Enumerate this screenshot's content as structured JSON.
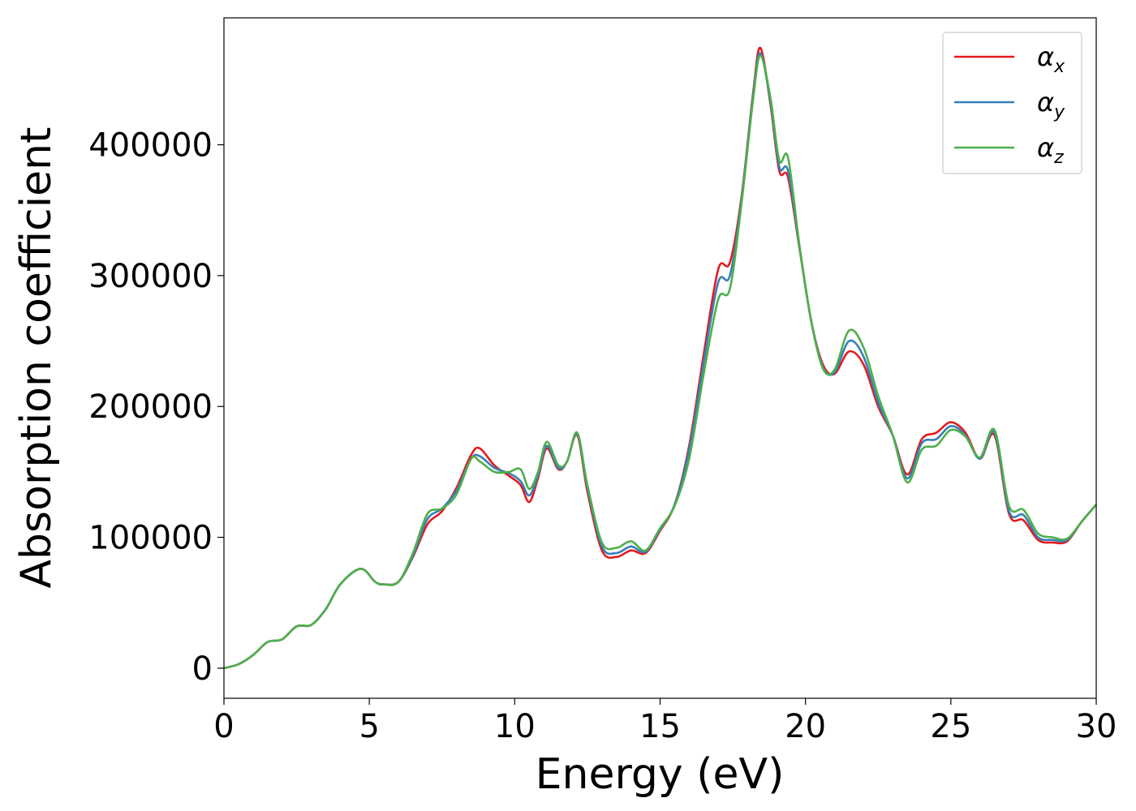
{
  "chart_data": {
    "type": "line",
    "title": "",
    "xlabel": "Energy (eV)",
    "ylabel": "Absorption coefficient",
    "xlim": [
      0,
      30
    ],
    "ylim": [
      -23000,
      497000
    ],
    "xticks": [
      0,
      5,
      10,
      15,
      20,
      25,
      30
    ],
    "yticks": [
      0,
      100000,
      200000,
      300000,
      400000
    ],
    "grid": false,
    "legend_position": "top-right",
    "series": [
      {
        "name": "α_x",
        "symbol": "α",
        "subscript": "x",
        "color": "#e41a1c",
        "x": [
          0,
          0.5,
          1.0,
          1.5,
          2.0,
          2.5,
          3.0,
          3.5,
          4.0,
          4.7,
          5.2,
          5.5,
          6.0,
          6.5,
          7.0,
          7.5,
          8.0,
          8.5,
          8.8,
          9.3,
          9.8,
          10.2,
          10.5,
          10.8,
          11.1,
          11.5,
          11.8,
          12.15,
          12.5,
          13.0,
          13.5,
          14.0,
          14.5,
          15.0,
          15.5,
          16.0,
          16.5,
          17.0,
          17.4,
          17.8,
          18.2,
          18.45,
          18.8,
          19.1,
          19.4,
          19.8,
          20.2,
          20.6,
          21.0,
          21.5,
          22.0,
          22.5,
          23.0,
          23.5,
          24.0,
          24.5,
          25.0,
          25.5,
          26.0,
          26.5,
          27.0,
          27.5,
          28.0,
          28.5,
          29.0,
          29.5,
          30.0
        ],
        "y": [
          0,
          3000,
          10000,
          20000,
          22000,
          32000,
          33000,
          45000,
          64000,
          76000,
          66000,
          64000,
          66000,
          85000,
          110000,
          120000,
          138000,
          163000,
          168000,
          155000,
          147000,
          140000,
          127000,
          145000,
          168000,
          152000,
          158000,
          178000,
          135000,
          90000,
          85000,
          90000,
          88000,
          105000,
          125000,
          170000,
          240000,
          305000,
          310000,
          360000,
          440000,
          474000,
          430000,
          380000,
          375000,
          320000,
          265000,
          232000,
          225000,
          242000,
          232000,
          200000,
          178000,
          148000,
          175000,
          180000,
          188000,
          180000,
          160000,
          178000,
          118000,
          113000,
          98000,
          96000,
          97000,
          112000,
          125000
        ]
      },
      {
        "name": "α_y",
        "symbol": "α",
        "subscript": "y",
        "color": "#377eb8",
        "x": [
          0,
          0.5,
          1.0,
          1.5,
          2.0,
          2.5,
          3.0,
          3.5,
          4.0,
          4.7,
          5.2,
          5.5,
          6.0,
          6.5,
          7.0,
          7.5,
          8.0,
          8.5,
          8.8,
          9.3,
          9.8,
          10.2,
          10.5,
          10.8,
          11.1,
          11.5,
          11.8,
          12.15,
          12.5,
          13.0,
          13.5,
          14.0,
          14.5,
          15.0,
          15.5,
          16.0,
          16.5,
          17.0,
          17.4,
          17.8,
          18.2,
          18.45,
          18.8,
          19.1,
          19.4,
          19.8,
          20.2,
          20.6,
          21.0,
          21.5,
          22.0,
          22.5,
          23.0,
          23.5,
          24.0,
          24.5,
          25.0,
          25.5,
          26.0,
          26.5,
          27.0,
          27.5,
          28.0,
          28.5,
          29.0,
          29.5,
          30.0
        ],
        "y": [
          0,
          3000,
          10000,
          20000,
          22000,
          32000,
          33000,
          45000,
          64000,
          76000,
          66000,
          64000,
          66000,
          86000,
          114000,
          122000,
          136000,
          160000,
          162000,
          153000,
          149000,
          143000,
          132000,
          147000,
          170000,
          153000,
          158000,
          179000,
          138000,
          93000,
          88000,
          93000,
          89000,
          106000,
          125000,
          167000,
          234000,
          295000,
          300000,
          358000,
          438000,
          470000,
          432000,
          383000,
          380000,
          321000,
          265000,
          230000,
          226000,
          250000,
          238000,
          203000,
          178000,
          145000,
          172000,
          175000,
          185000,
          178000,
          160000,
          180000,
          120000,
          117000,
          100000,
          98000,
          98000,
          112000,
          125000
        ]
      },
      {
        "name": "α_z",
        "symbol": "α",
        "subscript": "z",
        "color": "#4daf4a",
        "x": [
          0,
          0.5,
          1.0,
          1.5,
          2.0,
          2.5,
          3.0,
          3.5,
          4.0,
          4.7,
          5.2,
          5.5,
          6.0,
          6.5,
          7.0,
          7.5,
          8.0,
          8.5,
          8.8,
          9.3,
          9.8,
          10.2,
          10.5,
          10.8,
          11.1,
          11.5,
          11.8,
          12.15,
          12.5,
          13.0,
          13.5,
          14.0,
          14.5,
          15.0,
          15.5,
          16.0,
          16.5,
          17.0,
          17.4,
          17.8,
          18.2,
          18.45,
          18.8,
          19.1,
          19.4,
          19.8,
          20.2,
          20.6,
          21.0,
          21.5,
          22.0,
          22.5,
          23.0,
          23.5,
          24.0,
          24.5,
          25.0,
          25.5,
          26.0,
          26.5,
          27.0,
          27.5,
          28.0,
          28.5,
          29.0,
          29.5,
          30.0
        ],
        "y": [
          0,
          3000,
          10000,
          20000,
          22000,
          32000,
          33000,
          45000,
          64000,
          76000,
          66000,
          64000,
          66000,
          88000,
          118000,
          122000,
          133000,
          160000,
          158000,
          150000,
          150000,
          152000,
          137000,
          150000,
          173000,
          155000,
          158000,
          180000,
          140000,
          96000,
          92000,
          97000,
          90000,
          107000,
          124000,
          160000,
          225000,
          282000,
          290000,
          355000,
          435000,
          468000,
          435000,
          388000,
          390000,
          322000,
          265000,
          229000,
          228000,
          258000,
          245000,
          208000,
          178000,
          142000,
          167000,
          170000,
          182000,
          177000,
          161000,
          182000,
          124000,
          121000,
          103000,
          100000,
          99000,
          112000,
          125000
        ]
      }
    ]
  }
}
